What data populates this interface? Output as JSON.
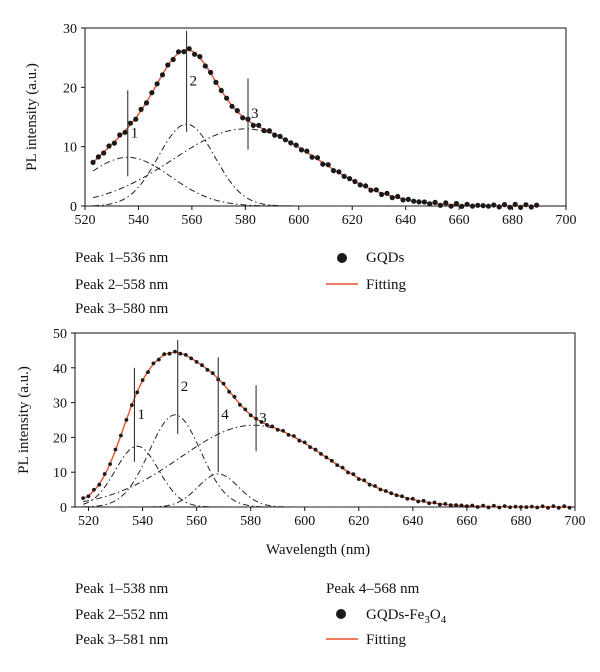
{
  "colors": {
    "fit": "#e8502a",
    "points": "#1a1a1a",
    "components": "#222222"
  },
  "chart_data": [
    {
      "type": "scatter",
      "xlabel": "",
      "ylabel": "PL intensity (a.u.)",
      "xlim": [
        520,
        700
      ],
      "ylim": [
        0,
        30
      ],
      "xticks": [
        "520",
        "540",
        "560",
        "580",
        "600",
        "620",
        "640",
        "660",
        "680",
        "700"
      ],
      "yticks": [
        "0",
        "10",
        "20",
        "30"
      ],
      "x_range": [
        523,
        690
      ],
      "series": [
        {
          "name": "GQDs",
          "kind": "points",
          "values": []
        },
        {
          "name": "Fitting",
          "kind": "line",
          "values": []
        }
      ],
      "components": [
        {
          "center": 536,
          "height": 8.2,
          "width": 16.0,
          "baseline": 0.0
        },
        {
          "center": 558,
          "height": 13.8,
          "width": 10.5,
          "baseline": 0.0
        },
        {
          "center": 580,
          "height": 13.0,
          "width": 27.0,
          "baseline": 0.0
        }
      ],
      "markers": [
        {
          "label": "1",
          "x": 536,
          "y_top": 19.5,
          "y_bottom": 5.0
        },
        {
          "label": "2",
          "x": 558,
          "y_top": 29.5,
          "y_bottom": 12.5
        },
        {
          "label": "3",
          "x": 581,
          "y_top": 21.5,
          "y_bottom": 9.5
        }
      ],
      "peaks_text": [
        "Peak 1–536 nm",
        "Peak 2–558 nm",
        "Peak 3–580 nm"
      ],
      "legend": [
        "GQDs",
        "Fitting"
      ]
    },
    {
      "type": "scatter",
      "xlabel": "Wavelength (nm)",
      "ylabel": "PL intensity (a.u.)",
      "xlim": [
        515,
        700
      ],
      "ylim": [
        0,
        50
      ],
      "xticks": [
        "520",
        "540",
        "560",
        "580",
        "600",
        "620",
        "640",
        "660",
        "680",
        "700"
      ],
      "yticks": [
        "0",
        "10",
        "20",
        "30",
        "40",
        "50"
      ],
      "x_range": [
        518,
        698
      ],
      "series": [
        {
          "name": "GQDs-Fe3O4",
          "kind": "points",
          "values": []
        },
        {
          "name": "Fitting",
          "kind": "line",
          "values": []
        }
      ],
      "components": [
        {
          "center": 538,
          "height": 17.5,
          "width": 8.0,
          "baseline": 0.0
        },
        {
          "center": 552,
          "height": 26.5,
          "width": 9.5,
          "baseline": 0.0
        },
        {
          "center": 568,
          "height": 9.5,
          "width": 7.5,
          "baseline": 0.0
        },
        {
          "center": 581,
          "height": 23.5,
          "width": 27.0,
          "baseline": 0.0
        }
      ],
      "markers": [
        {
          "label": "1",
          "x": 537,
          "y_top": 40.0,
          "y_bottom": 13.0
        },
        {
          "label": "2",
          "x": 553,
          "y_top": 48.0,
          "y_bottom": 21.0
        },
        {
          "label": "4",
          "x": 568,
          "y_top": 43.0,
          "y_bottom": 10.0
        },
        {
          "label": "3",
          "x": 582,
          "y_top": 35.0,
          "y_bottom": 16.0
        }
      ],
      "peaks_text": [
        "Peak 1–538 nm",
        "Peak 2–552 nm",
        "Peak 3–581 nm"
      ],
      "extra_peak_text": "Peak 4–568 nm",
      "legend": [
        "GQDs-Fe",
        "Fitting"
      ],
      "legend_subscript_3": "3",
      "legend_o": "O",
      "legend_subscript_4": "4"
    }
  ]
}
